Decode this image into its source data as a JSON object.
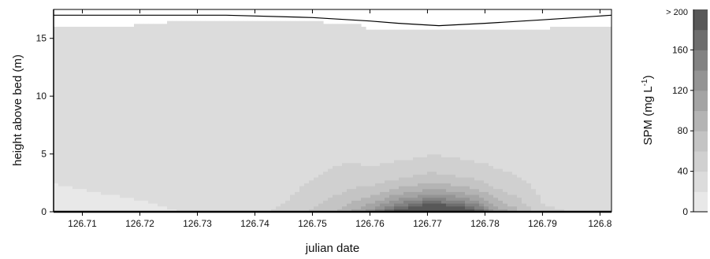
{
  "chart_data": {
    "type": "heatmap",
    "title": "",
    "xlabel": "julian date",
    "ylabel": "height above bed (m)",
    "xlim": [
      126.705,
      126.802
    ],
    "ylim": [
      0,
      17.5
    ],
    "x_ticks": [
      126.71,
      126.72,
      126.73,
      126.74,
      126.75,
      126.76,
      126.77,
      126.78,
      126.79,
      126.8
    ],
    "x_tick_labels": [
      "126.71",
      "126.72",
      "126.73",
      "126.74",
      "126.75",
      "126.76",
      "126.77",
      "126.78",
      "126.79",
      "126.8"
    ],
    "y_ticks": [
      0,
      5,
      10,
      15
    ],
    "y_tick_labels": [
      "0",
      "5",
      "10",
      "15"
    ],
    "water_surface": {
      "x": [
        126.705,
        126.72,
        126.735,
        126.75,
        126.76,
        126.765,
        126.772,
        126.78,
        126.79,
        126.802
      ],
      "y": [
        17.0,
        17.0,
        17.0,
        16.8,
        16.5,
        16.3,
        16.1,
        16.3,
        16.6,
        17.0
      ]
    },
    "data_top": {
      "x": [
        126.705,
        126.718,
        126.73,
        126.735,
        126.75,
        126.757,
        126.76,
        126.772,
        126.79,
        126.795,
        126.802
      ],
      "y": [
        16.1,
        16.1,
        16.6,
        16.6,
        16.4,
        16.3,
        15.8,
        15.7,
        15.8,
        16.1,
        16.1
      ]
    },
    "field_peaks": [
      {
        "x": 126.705,
        "z": 15,
        "h": 3.5
      },
      {
        "x": 126.72,
        "z": 18,
        "h": 3.0
      },
      {
        "x": 126.735,
        "z": 22,
        "h": 2.5
      },
      {
        "x": 126.745,
        "z": 45,
        "h": 2.5
      },
      {
        "x": 126.75,
        "z": 65,
        "h": 3.0
      },
      {
        "x": 126.755,
        "z": 85,
        "h": 3.0
      },
      {
        "x": 126.76,
        "z": 130,
        "h": 2.0
      },
      {
        "x": 126.765,
        "z": 200,
        "h": 1.8
      },
      {
        "x": 126.771,
        "z": 260,
        "h": 1.8
      },
      {
        "x": 126.778,
        "z": 200,
        "h": 1.8
      },
      {
        "x": 126.782,
        "z": 120,
        "h": 2.0
      },
      {
        "x": 126.79,
        "z": 45,
        "h": 2.5
      },
      {
        "x": 126.802,
        "z": 30,
        "h": 3.0
      }
    ],
    "background_spm": 25,
    "colorbar": {
      "label": "SPM (mg L",
      "label_superscript": "-1",
      "label_close": ")",
      "ticks": [
        0,
        40,
        80,
        120,
        160
      ],
      "tick_labels": [
        "0",
        "40",
        "80",
        "120",
        "160"
      ],
      "top_label": "> 200",
      "range": [
        0,
        200
      ],
      "levels": [
        0,
        20,
        40,
        60,
        80,
        100,
        120,
        140,
        160,
        180,
        200
      ],
      "colors": [
        "#e8e8e8",
        "#dcdcdc",
        "#d0d0d0",
        "#c4c4c4",
        "#b4b4b4",
        "#a4a4a4",
        "#949494",
        "#828282",
        "#6e6e6e",
        "#585858",
        "#0a0a0a"
      ]
    }
  }
}
